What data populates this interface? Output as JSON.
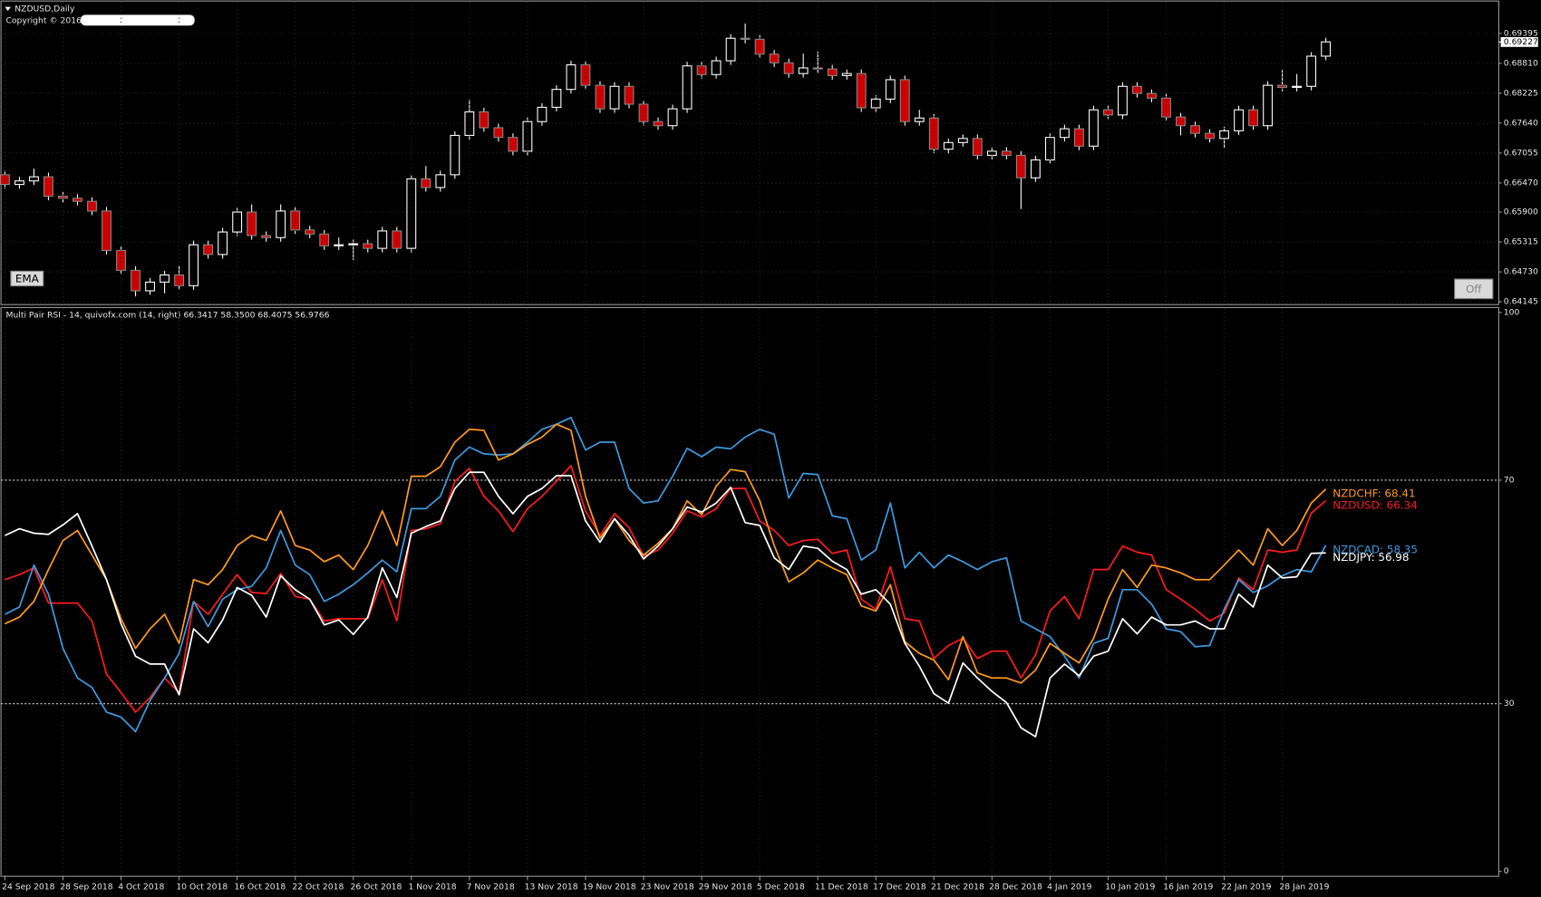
{
  "chart_data": [
    {
      "type": "candlestick",
      "title": "NZDUSD,Daily",
      "subtitle": "Copyright © 2016,",
      "open": [
        0.6663,
        0.6644,
        0.6651,
        0.6659,
        0.6621,
        0.6617,
        0.6611,
        0.6592,
        0.6515,
        0.6476,
        0.6436,
        0.6453,
        0.6467,
        0.6446,
        0.6526,
        0.6507,
        0.6551,
        0.659,
        0.6544,
        0.654,
        0.6592,
        0.6555,
        0.6547,
        0.6524,
        0.6526,
        0.6528,
        0.6519,
        0.6553,
        0.6519,
        0.6655,
        0.6638,
        0.6663,
        0.674,
        0.6786,
        0.6755,
        0.6736,
        0.6709,
        0.6767,
        0.6795,
        0.683,
        0.6878,
        0.6838,
        0.6792,
        0.6836,
        0.6801,
        0.6767,
        0.6759,
        0.6792,
        0.6876,
        0.6859,
        0.6886,
        0.693,
        0.6928,
        0.6899,
        0.6882,
        0.6861,
        0.6872,
        0.687,
        0.6857,
        0.6861,
        0.6794,
        0.6811,
        0.6849,
        0.6767,
        0.6774,
        0.6713,
        0.6726,
        0.6734,
        0.6701,
        0.6709,
        0.6701,
        0.6657,
        0.6692,
        0.6736,
        0.6753,
        0.6719,
        0.679,
        0.678,
        0.6836,
        0.6822,
        0.6813,
        0.6776,
        0.6759,
        0.6744,
        0.6734,
        0.6749,
        0.679,
        0.6759,
        0.6838,
        0.6834,
        0.6836,
        0.6895
      ],
      "high": [
        0.6671,
        0.6659,
        0.6675,
        0.6667,
        0.6629,
        0.6625,
        0.6619,
        0.66,
        0.6523,
        0.6484,
        0.6461,
        0.6475,
        0.6485,
        0.6534,
        0.6534,
        0.6559,
        0.6598,
        0.6605,
        0.6552,
        0.6605,
        0.66,
        0.6563,
        0.6555,
        0.654,
        0.6536,
        0.6536,
        0.6561,
        0.6561,
        0.6663,
        0.668,
        0.6671,
        0.6748,
        0.681,
        0.6794,
        0.6763,
        0.6744,
        0.6775,
        0.6803,
        0.6838,
        0.6886,
        0.6886,
        0.6846,
        0.6844,
        0.6844,
        0.6809,
        0.6775,
        0.68,
        0.6884,
        0.6884,
        0.6894,
        0.6938,
        0.6959,
        0.6936,
        0.6907,
        0.689,
        0.69,
        0.6904,
        0.6878,
        0.6869,
        0.6869,
        0.6819,
        0.6857,
        0.6857,
        0.679,
        0.6782,
        0.6734,
        0.6742,
        0.6742,
        0.6717,
        0.6717,
        0.6709,
        0.67,
        0.6744,
        0.6761,
        0.6761,
        0.6798,
        0.6798,
        0.6844,
        0.6844,
        0.683,
        0.6821,
        0.6784,
        0.6767,
        0.6752,
        0.6757,
        0.6798,
        0.6798,
        0.6846,
        0.6868,
        0.686,
        0.6903,
        0.6931
      ],
      "low": [
        0.6636,
        0.6636,
        0.6643,
        0.6613,
        0.6609,
        0.6603,
        0.6584,
        0.6507,
        0.6468,
        0.6425,
        0.6428,
        0.6431,
        0.6438,
        0.6438,
        0.6499,
        0.6499,
        0.6543,
        0.6536,
        0.6532,
        0.6532,
        0.6547,
        0.6539,
        0.6516,
        0.6516,
        0.6496,
        0.6511,
        0.6511,
        0.6511,
        0.6511,
        0.663,
        0.663,
        0.6655,
        0.6732,
        0.6747,
        0.6728,
        0.6701,
        0.6701,
        0.6759,
        0.6787,
        0.6822,
        0.683,
        0.6784,
        0.6784,
        0.6793,
        0.6759,
        0.6751,
        0.6751,
        0.6784,
        0.6851,
        0.6851,
        0.6878,
        0.692,
        0.6891,
        0.6874,
        0.6853,
        0.6853,
        0.6862,
        0.6849,
        0.6849,
        0.6786,
        0.6786,
        0.6803,
        0.6759,
        0.6759,
        0.6705,
        0.6705,
        0.6718,
        0.6693,
        0.6693,
        0.6693,
        0.6596,
        0.6649,
        0.6684,
        0.6728,
        0.6711,
        0.6711,
        0.6772,
        0.6772,
        0.6814,
        0.6805,
        0.6768,
        0.674,
        0.6736,
        0.6726,
        0.6715,
        0.6741,
        0.6751,
        0.6751,
        0.6826,
        0.6826,
        0.6828,
        0.6887
      ],
      "close": [
        0.6644,
        0.6651,
        0.6659,
        0.6621,
        0.6617,
        0.6611,
        0.6592,
        0.6515,
        0.6476,
        0.6436,
        0.6453,
        0.6467,
        0.6446,
        0.6526,
        0.6507,
        0.6551,
        0.659,
        0.6544,
        0.654,
        0.6592,
        0.6555,
        0.6547,
        0.6524,
        0.6526,
        0.6528,
        0.6519,
        0.6553,
        0.6519,
        0.6655,
        0.6638,
        0.6663,
        0.674,
        0.6786,
        0.6755,
        0.6736,
        0.6709,
        0.6767,
        0.6795,
        0.683,
        0.6878,
        0.6838,
        0.6792,
        0.6836,
        0.6801,
        0.6767,
        0.6759,
        0.6792,
        0.6876,
        0.6859,
        0.6886,
        0.693,
        0.6928,
        0.6899,
        0.6882,
        0.6861,
        0.6872,
        0.687,
        0.6857,
        0.6861,
        0.6794,
        0.6811,
        0.6849,
        0.6767,
        0.6774,
        0.6713,
        0.6726,
        0.6734,
        0.6701,
        0.6709,
        0.6701,
        0.6657,
        0.6692,
        0.6736,
        0.6753,
        0.6719,
        0.679,
        0.678,
        0.6836,
        0.6822,
        0.6813,
        0.6776,
        0.6759,
        0.6744,
        0.6734,
        0.6749,
        0.679,
        0.6759,
        0.6838,
        0.6834,
        0.6836,
        0.6895,
        0.6923
      ],
      "ylim": [
        0.6409,
        0.6999
      ],
      "yticks": [
        0.69395,
        {
          "value": 0.6881,
          "label": "0.68810"
        },
        0.68225,
        {
          "value": 0.6764,
          "label": "0.67640"
        },
        0.67055,
        {
          "value": 0.6647,
          "label": "0.66470"
        },
        {
          "value": 0.659,
          "label": "0.65900"
        },
        0.65315,
        {
          "value": 0.6473,
          "label": "0.64730"
        },
        0.64145
      ],
      "last_price": 0.69227,
      "grid": true,
      "up_color": "#000000",
      "down_color": "#cc0000",
      "edge_color": "#ffffff",
      "buttons": [
        "EMA",
        "Off"
      ]
    },
    {
      "type": "line",
      "title": "Multi Pair RSI - 14, quivofx.com (14, right) 66.3417 58.3500 68.4075 56.9766",
      "categories": [
        "24 Sep 2018",
        null,
        null,
        null,
        "28 Sep 2018",
        null,
        null,
        null,
        "4 Oct 2018",
        null,
        null,
        null,
        "10 Oct 2018",
        null,
        null,
        null,
        "16 Oct 2018",
        null,
        null,
        null,
        "22 Oct 2018",
        null,
        null,
        null,
        "26 Oct 2018",
        null,
        null,
        null,
        "1 Nov 2018",
        null,
        null,
        null,
        "7 Nov 2018",
        null,
        null,
        null,
        "13 Nov 2018",
        null,
        null,
        null,
        "19 Nov 2018",
        null,
        null,
        null,
        "23 Nov 2018",
        null,
        null,
        null,
        "29 Nov 2018",
        null,
        null,
        null,
        "5 Dec 2018",
        null,
        null,
        null,
        "11 Dec 2018",
        null,
        null,
        null,
        "17 Dec 2018",
        null,
        null,
        null,
        "21 Dec 2018",
        null,
        null,
        null,
        "28 Dec 2018",
        null,
        null,
        null,
        "4 Jan 2019",
        null,
        null,
        null,
        "10 Jan 2019",
        null,
        null,
        null,
        "16 Jan 2019",
        null,
        null,
        null,
        "22 Jan 2019",
        null,
        null,
        null,
        "28 Jan 2019",
        null,
        null,
        null
      ],
      "series": [
        {
          "name": "NZDUSD: 66.34",
          "color": "#ff1a1a",
          "values": [
            52.2,
            53.1,
            54.3,
            48.0,
            48.0,
            48.0,
            44.8,
            35.3,
            32.0,
            28.5,
            31.1,
            34.6,
            32.0,
            48.3,
            46.0,
            49.6,
            53.1,
            49.9,
            49.7,
            53.3,
            49.2,
            48.7,
            44.8,
            45.2,
            45.2,
            45.2,
            52.2,
            44.8,
            61.0,
            61.3,
            62.2,
            69.8,
            72.1,
            67.1,
            64.5,
            60.8,
            64.9,
            67.1,
            69.8,
            72.6,
            64.5,
            60.1,
            64.0,
            61.5,
            56.4,
            57.5,
            60.5,
            64.5,
            63.4,
            64.9,
            68.5,
            68.5,
            62.7,
            61.0,
            58.3,
            59.2,
            59.4,
            56.9,
            57.5,
            48.7,
            46.9,
            54.5,
            45.2,
            44.8,
            38.1,
            40.4,
            41.7,
            38.1,
            39.4,
            39.4,
            34.6,
            38.7,
            46.6,
            49.2,
            45.2,
            54.0,
            54.0,
            58.2,
            57.1,
            56.6,
            50.4,
            48.7,
            46.9,
            44.8,
            46.2,
            52.5,
            50.4,
            57.5,
            57.1,
            57.5,
            64.1,
            66.34
          ]
        },
        {
          "name": "NZDCAD: 58.35",
          "color": "#3a9ae0",
          "values": [
            46.0,
            47.3,
            54.8,
            49.6,
            39.9,
            34.6,
            32.9,
            28.5,
            27.6,
            25.0,
            30.6,
            34.6,
            39.0,
            48.3,
            43.8,
            48.7,
            50.4,
            51.0,
            54.3,
            61.0,
            54.8,
            53.1,
            48.3,
            49.6,
            51.3,
            53.4,
            55.7,
            53.6,
            64.9,
            64.9,
            67.1,
            73.6,
            75.9,
            74.7,
            74.5,
            74.7,
            76.8,
            79.1,
            80.0,
            81.2,
            75.4,
            76.8,
            76.8,
            68.5,
            65.9,
            66.3,
            70.7,
            75.7,
            74.2,
            75.9,
            75.6,
            77.7,
            79.1,
            78.2,
            66.8,
            71.2,
            71.0,
            63.6,
            63.1,
            55.7,
            57.5,
            65.9,
            54.3,
            57.1,
            54.3,
            56.6,
            55.4,
            54.0,
            55.4,
            56.1,
            44.8,
            43.4,
            42.0,
            38.5,
            34.6,
            40.8,
            41.7,
            50.4,
            50.4,
            47.8,
            43.4,
            42.9,
            40.2,
            40.4,
            46.9,
            52.2,
            49.9,
            51.1,
            52.9,
            54.0,
            53.6,
            58.35
          ]
        },
        {
          "name": "NZDCHF: 68.41",
          "color": "#ff9a1a",
          "values": [
            44.3,
            45.5,
            48.3,
            54.0,
            59.2,
            61.0,
            56.6,
            52.2,
            45.2,
            39.9,
            43.4,
            46.0,
            40.8,
            52.2,
            51.3,
            54.0,
            58.3,
            60.1,
            59.2,
            64.5,
            58.3,
            57.5,
            55.4,
            56.6,
            54.0,
            58.3,
            64.5,
            58.3,
            70.7,
            70.7,
            72.4,
            76.8,
            79.1,
            78.9,
            73.6,
            74.7,
            76.4,
            77.7,
            80.0,
            78.9,
            67.1,
            59.6,
            63.1,
            59.2,
            56.6,
            58.7,
            61.3,
            66.3,
            63.8,
            68.9,
            71.9,
            71.5,
            66.3,
            58.3,
            51.8,
            53.4,
            55.7,
            54.3,
            53.1,
            47.5,
            46.6,
            51.3,
            41.1,
            39.0,
            37.8,
            34.3,
            42.0,
            35.5,
            34.6,
            34.6,
            33.7,
            36.0,
            40.8,
            39.0,
            37.3,
            41.7,
            48.7,
            54.0,
            50.8,
            54.8,
            54.3,
            53.4,
            52.2,
            52.2,
            54.8,
            57.5,
            54.8,
            61.3,
            58.3,
            61.0,
            65.9,
            68.41
          ]
        },
        {
          "name": "NZDJPY: 56.98",
          "color": "#ffffff",
          "values": [
            60.1,
            61.3,
            60.5,
            60.3,
            62.0,
            64.0,
            58.2,
            52.2,
            44.3,
            38.5,
            37.1,
            37.1,
            31.6,
            43.4,
            40.9,
            45.0,
            50.8,
            49.4,
            45.5,
            52.9,
            50.4,
            48.7,
            44.1,
            45.0,
            42.4,
            45.5,
            54.3,
            49.0,
            60.5,
            61.7,
            62.7,
            68.5,
            71.4,
            71.4,
            67.1,
            64.0,
            67.1,
            68.5,
            70.8,
            70.8,
            62.7,
            58.9,
            63.1,
            60.1,
            55.9,
            58.2,
            61.3,
            65.2,
            64.3,
            65.9,
            68.7,
            62.4,
            61.9,
            56.1,
            54.0,
            58.2,
            57.8,
            55.5,
            54.0,
            49.6,
            50.4,
            47.8,
            40.8,
            36.7,
            31.8,
            30.1,
            37.3,
            34.6,
            32.2,
            30.2,
            25.7,
            24.1,
            34.6,
            37.1,
            35.0,
            38.5,
            39.4,
            45.2,
            42.5,
            45.5,
            44.1,
            44.1,
            44.8,
            43.4,
            43.4,
            49.6,
            47.3,
            54.8,
            52.5,
            52.7,
            56.9,
            56.98
          ]
        }
      ],
      "ylim": [
        0,
        100
      ],
      "yticks": [
        0,
        30,
        70,
        100
      ],
      "grid": true
    }
  ]
}
